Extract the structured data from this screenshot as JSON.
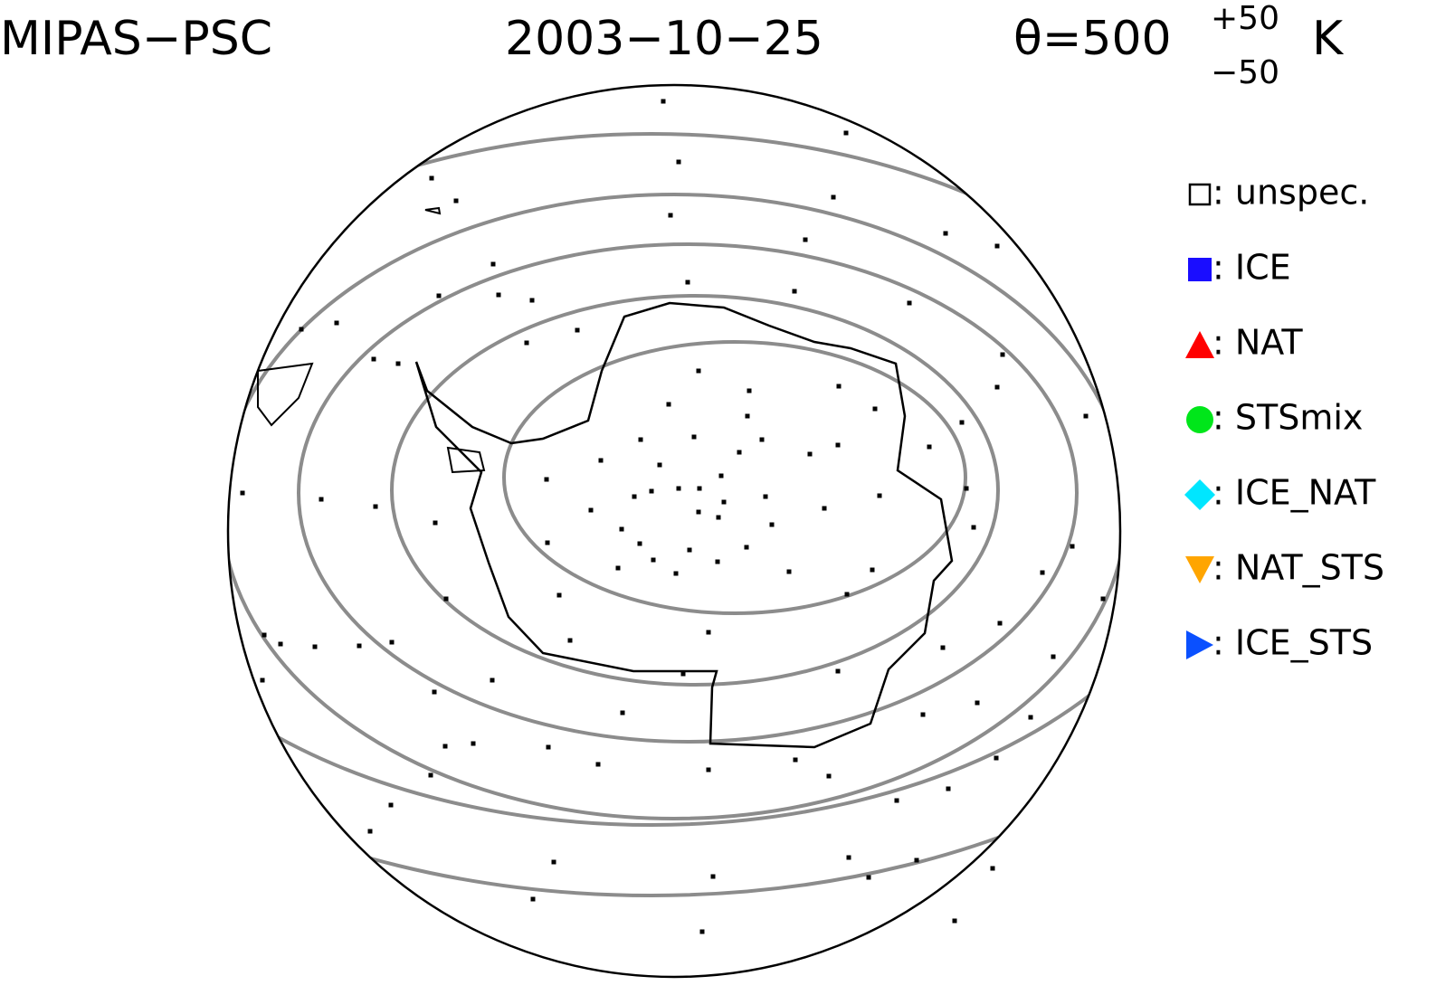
{
  "header": {
    "instrument": "MIPAS−PSC",
    "date": "2003−10−25",
    "theta": "θ=500",
    "theta_upper": "+50",
    "theta_lower": "−50",
    "unit": "K"
  },
  "legend": {
    "items": [
      {
        "label": ": unspec.",
        "color": "#000000",
        "marker": "open-square"
      },
      {
        "label": ": ICE",
        "color": "#1a0dff",
        "marker": "square"
      },
      {
        "label": ": NAT",
        "color": "#ff0000",
        "marker": "triangle-up"
      },
      {
        "label": ": STSmix",
        "color": "#00e61a",
        "marker": "circle"
      },
      {
        "label": ": ICE_NAT",
        "color": "#00e6ff",
        "marker": "diamond"
      },
      {
        "label": ": NAT_STS",
        "color": "#ffa500",
        "marker": "triangle-down"
      },
      {
        "label": ": ICE_STS",
        "color": "#0a50ff",
        "marker": "triangle-right"
      }
    ]
  }
}
